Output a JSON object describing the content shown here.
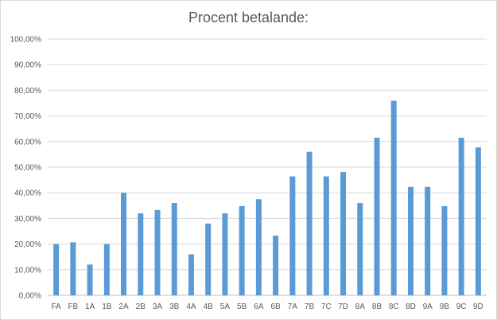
{
  "chart_data": {
    "type": "bar",
    "title": "Procent betalande:",
    "xlabel": "",
    "ylabel": "",
    "ylim": [
      0,
      100
    ],
    "yticks": [
      "0,00%",
      "10,00%",
      "20,00%",
      "30,00%",
      "40,00%",
      "50,00%",
      "60,00%",
      "70,00%",
      "80,00%",
      "90,00%",
      "100,00%"
    ],
    "grid": true,
    "legend": "none",
    "bar_color": "#5b9bd5",
    "categories": [
      "FA",
      "FB",
      "1A",
      "1B",
      "2A",
      "2B",
      "3A",
      "3B",
      "4A",
      "4B",
      "5A",
      "5B",
      "6A",
      "6B",
      "7A",
      "7B",
      "7C",
      "7D",
      "8A",
      "8B",
      "8C",
      "8D",
      "9A",
      "9B",
      "9C",
      "9D"
    ],
    "values": [
      20.0,
      20.7,
      12.0,
      20.0,
      40.0,
      32.0,
      33.3,
      36.0,
      16.0,
      28.0,
      32.0,
      34.8,
      37.5,
      23.3,
      46.4,
      56.0,
      46.4,
      48.1,
      36.0,
      61.5,
      75.9,
      42.3,
      42.3,
      34.8,
      61.5,
      57.7
    ]
  }
}
